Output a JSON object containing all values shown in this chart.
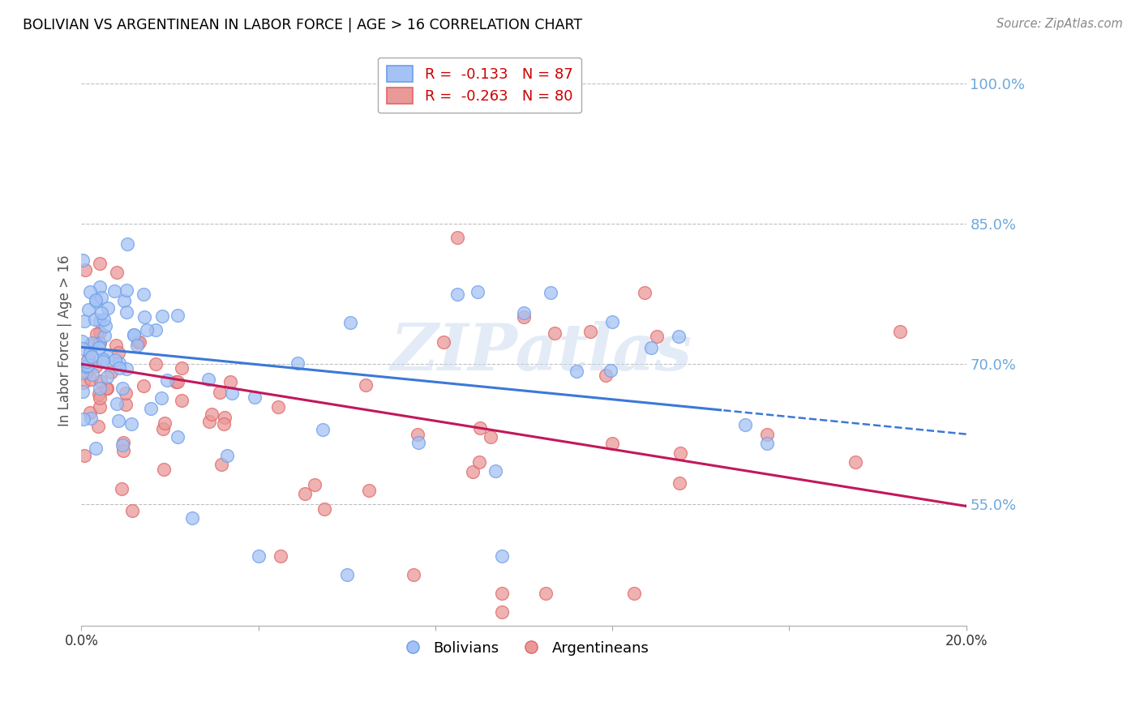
{
  "title": "BOLIVIAN VS ARGENTINEAN IN LABOR FORCE | AGE > 16 CORRELATION CHART",
  "source": "Source: ZipAtlas.com",
  "ylabel": "In Labor Force | Age > 16",
  "x_min": 0.0,
  "x_max": 0.2,
  "y_min": 0.42,
  "y_max": 1.03,
  "y_ticks": [
    0.55,
    0.7,
    0.85,
    1.0
  ],
  "y_tick_labels": [
    "55.0%",
    "70.0%",
    "85.0%",
    "100.0%"
  ],
  "x_ticks": [
    0.0,
    0.04,
    0.08,
    0.12,
    0.16,
    0.2
  ],
  "x_tick_labels": [
    "0.0%",
    "",
    "",
    "",
    "",
    "20.0%"
  ],
  "bolivians_R": -0.133,
  "bolivians_N": 87,
  "argentineans_R": -0.263,
  "argentineans_N": 80,
  "blue_fill_color": "#a4c2f4",
  "blue_edge_color": "#6d9eeb",
  "pink_fill_color": "#ea9999",
  "pink_edge_color": "#e06666",
  "blue_line_color": "#3c78d8",
  "pink_line_color": "#c2185b",
  "blue_line_solid_end": 0.145,
  "blue_line_y0": 0.718,
  "blue_line_y1": 0.625,
  "pink_line_y0": 0.7,
  "pink_line_y1": 0.548,
  "legend_label_blue": "Bolivians",
  "legend_label_pink": "Argentineans",
  "watermark": "ZIPatlas",
  "grid_color": "#b0b0b0",
  "background_color": "#ffffff",
  "title_color": "#000000",
  "right_tick_color": "#6fa8dc",
  "legend_R_color": "#cc0000",
  "legend_N_color": "#1155cc"
}
